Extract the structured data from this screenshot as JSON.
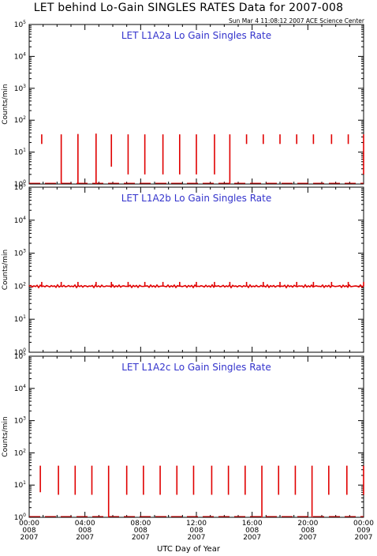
{
  "title": "LET behind Lo-Gain SINGLES RATES Data for 2007-008",
  "timestamp": "Sun Mar  4 11:08:12 2007 ACE Science Center",
  "colors": {
    "data": "#e00000",
    "panel_label": "#3333cc",
    "axis": "#000000"
  },
  "chart_data": [
    {
      "type": "line",
      "panel_label": "LET L1A2a Lo Gain Singles Rate",
      "ylabel": "Counts/min",
      "yscale": "log",
      "ylim": [
        1,
        100000
      ],
      "y_ticks": [
        1,
        10,
        100,
        1000,
        10000,
        100000
      ],
      "x_range_hours": [
        0,
        24
      ],
      "baseline": 1,
      "spikes": [
        {
          "x": 0.9,
          "low": 18,
          "high": 36
        },
        {
          "x": 2.3,
          "low": 1,
          "high": 36
        },
        {
          "x": 3.5,
          "low": 1,
          "high": 37
        },
        {
          "x": 4.8,
          "low": 1,
          "high": 38
        },
        {
          "x": 5.9,
          "low": 3.5,
          "high": 36
        },
        {
          "x": 7.1,
          "low": 2,
          "high": 36
        },
        {
          "x": 8.3,
          "low": 2,
          "high": 36
        },
        {
          "x": 9.6,
          "low": 2,
          "high": 36
        },
        {
          "x": 10.8,
          "low": 2,
          "high": 36
        },
        {
          "x": 12.0,
          "low": 2,
          "high": 36
        },
        {
          "x": 13.3,
          "low": 2,
          "high": 36
        },
        {
          "x": 14.4,
          "low": 1,
          "high": 36
        },
        {
          "x": 15.6,
          "low": 18,
          "high": 36
        },
        {
          "x": 16.8,
          "low": 18,
          "high": 36
        },
        {
          "x": 18.0,
          "low": 18,
          "high": 36
        },
        {
          "x": 19.2,
          "low": 18,
          "high": 36
        },
        {
          "x": 20.4,
          "low": 18,
          "high": 36
        },
        {
          "x": 21.7,
          "low": 18,
          "high": 36
        },
        {
          "x": 22.9,
          "low": 18,
          "high": 36
        },
        {
          "x": 24.0,
          "low": 2,
          "high": 36
        }
      ]
    },
    {
      "type": "line",
      "panel_label": "LET L1A2b Lo Gain Singles Rate",
      "ylabel": "Counts/min",
      "yscale": "log",
      "ylim": [
        1,
        100000
      ],
      "y_ticks": [
        1,
        10,
        100,
        1000,
        10000,
        100000
      ],
      "x_range_hours": [
        0,
        24
      ],
      "baseline": 100,
      "spikes": [
        {
          "x": 0.9,
          "low": 100,
          "high": 135
        },
        {
          "x": 2.3,
          "low": 100,
          "high": 135
        },
        {
          "x": 3.5,
          "low": 100,
          "high": 135
        },
        {
          "x": 4.8,
          "low": 100,
          "high": 135
        },
        {
          "x": 5.9,
          "low": 100,
          "high": 135
        },
        {
          "x": 7.1,
          "low": 100,
          "high": 135
        },
        {
          "x": 8.3,
          "low": 100,
          "high": 135
        },
        {
          "x": 9.6,
          "low": 100,
          "high": 135
        },
        {
          "x": 10.8,
          "low": 100,
          "high": 135
        },
        {
          "x": 12.0,
          "low": 100,
          "high": 135
        },
        {
          "x": 13.3,
          "low": 100,
          "high": 135
        },
        {
          "x": 14.4,
          "low": 100,
          "high": 135
        },
        {
          "x": 15.6,
          "low": 100,
          "high": 135
        },
        {
          "x": 16.8,
          "low": 100,
          "high": 135
        },
        {
          "x": 18.0,
          "low": 100,
          "high": 135
        },
        {
          "x": 19.2,
          "low": 100,
          "high": 135
        },
        {
          "x": 20.4,
          "low": 100,
          "high": 135
        },
        {
          "x": 21.7,
          "low": 100,
          "high": 135
        },
        {
          "x": 22.9,
          "low": 100,
          "high": 135
        },
        {
          "x": 24.0,
          "low": 100,
          "high": 135
        }
      ]
    },
    {
      "type": "line",
      "panel_label": "LET L1A2c Lo Gain Singles Rate",
      "ylabel": "Counts/min",
      "yscale": "log",
      "ylim": [
        1,
        100000
      ],
      "y_ticks": [
        1,
        10,
        100,
        1000,
        10000,
        100000
      ],
      "x_range_hours": [
        0,
        24
      ],
      "baseline": 1,
      "spikes": [
        {
          "x": 0.8,
          "low": 6,
          "high": 40
        },
        {
          "x": 2.1,
          "low": 5,
          "high": 40
        },
        {
          "x": 3.3,
          "low": 5,
          "high": 40
        },
        {
          "x": 4.5,
          "low": 5,
          "high": 40
        },
        {
          "x": 5.7,
          "low": 1,
          "high": 40
        },
        {
          "x": 7.0,
          "low": 5,
          "high": 40
        },
        {
          "x": 8.2,
          "low": 5,
          "high": 40
        },
        {
          "x": 9.4,
          "low": 5,
          "high": 40
        },
        {
          "x": 10.6,
          "low": 5,
          "high": 40
        },
        {
          "x": 11.8,
          "low": 5,
          "high": 40
        },
        {
          "x": 13.1,
          "low": 5,
          "high": 40
        },
        {
          "x": 14.3,
          "low": 5,
          "high": 40
        },
        {
          "x": 15.5,
          "low": 5,
          "high": 40
        },
        {
          "x": 16.7,
          "low": 1,
          "high": 40
        },
        {
          "x": 17.9,
          "low": 5,
          "high": 40
        },
        {
          "x": 19.1,
          "low": 5,
          "high": 40
        },
        {
          "x": 20.3,
          "low": 1,
          "high": 40
        },
        {
          "x": 21.5,
          "low": 5,
          "high": 40
        },
        {
          "x": 22.8,
          "low": 5,
          "high": 40
        },
        {
          "x": 24.0,
          "low": 5,
          "high": 40
        }
      ]
    }
  ],
  "x_ticks": [
    {
      "hour": 0,
      "time": "00:00",
      "day": "008",
      "year": "2007"
    },
    {
      "hour": 4,
      "time": "04:00",
      "day": "008",
      "year": "2007"
    },
    {
      "hour": 8,
      "time": "08:00",
      "day": "008",
      "year": "2007"
    },
    {
      "hour": 12,
      "time": "12:00",
      "day": "008",
      "year": "2007"
    },
    {
      "hour": 16,
      "time": "16:00",
      "day": "008",
      "year": "2007"
    },
    {
      "hour": 20,
      "time": "20:00",
      "day": "008",
      "year": "2007"
    },
    {
      "hour": 24,
      "time": "00:00",
      "day": "009",
      "year": "2007"
    }
  ],
  "xlabel": "UTC Day of Year"
}
